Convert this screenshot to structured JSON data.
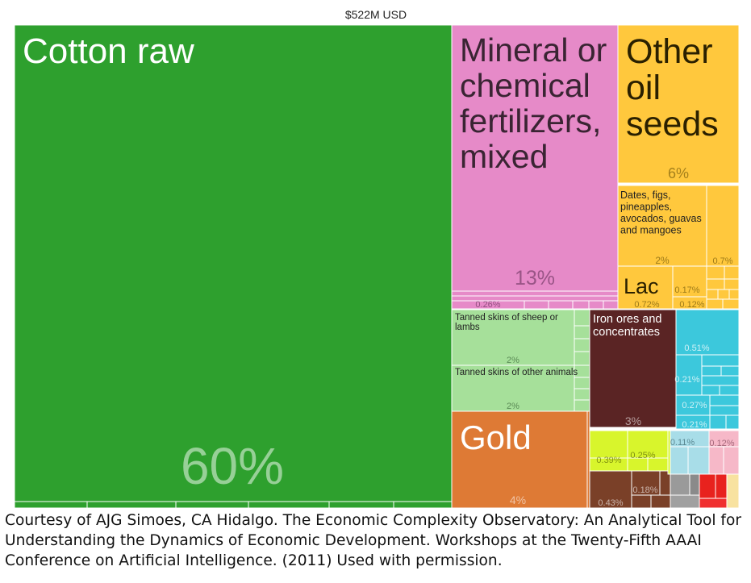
{
  "chart_data": {
    "type": "treemap",
    "title": "$522M USD",
    "items": [
      {
        "label": "Cotton raw",
        "pct_label": "60%",
        "color": "#2ea02e"
      },
      {
        "label": "Mineral or chemical fertilizers, mixed",
        "label_lines": [
          "Mineral or",
          "chemical",
          "fertilizers,",
          "mixed"
        ],
        "pct_label": "13%",
        "color": "#e68ac8"
      },
      {
        "label": "Other oil seeds",
        "label_lines": [
          "Other",
          "oil",
          "seeds"
        ],
        "pct_label": "6%",
        "color": "#ffc83d"
      },
      {
        "label": "Dates, figs, pineapples, avocados, guavas and mangoes",
        "label_lines": [
          "Dates, figs,",
          "pineapples,",
          "avocados, guavas",
          "and mangoes"
        ],
        "pct_label": "2%",
        "color": "#ffc83d"
      },
      {
        "label": "",
        "pct_label": "0.7%",
        "color": "#ffc83d"
      },
      {
        "label": "Lac",
        "pct_label": "0.72%",
        "color": "#ffc83d"
      },
      {
        "label": "",
        "pct_label": "0.17%",
        "color": "#ffc83d"
      },
      {
        "label": "",
        "pct_label": "0.12%",
        "color": "#ffc83d"
      },
      {
        "label": "",
        "pct_label": "0.26%",
        "color": "#e68ac8"
      },
      {
        "label": "Tanned skins of sheep or lambs",
        "label_lines": [
          "Tanned skins of sheep or",
          "lambs"
        ],
        "pct_label": "2%",
        "color": "#a6e09a"
      },
      {
        "label": "Tanned skins of other animals",
        "label_lines": [
          "Tanned skins of other animals"
        ],
        "pct_label": "2%",
        "color": "#a6e09a"
      },
      {
        "label": "Iron ores and concentrates",
        "label_lines": [
          "Iron ores and",
          "concentrates"
        ],
        "pct_label": "3%",
        "color": "#5a2424"
      },
      {
        "label": "",
        "pct_label": "0.51%",
        "color": "#3cc8dc"
      },
      {
        "label": "",
        "pct_label": "0.21%",
        "color": "#3cc8dc"
      },
      {
        "label": "",
        "pct_label": "0.27%",
        "color": "#3cc8dc"
      },
      {
        "label": "",
        "pct_label": "0.21%",
        "color": "#3cc8dc"
      },
      {
        "label": "Gold",
        "pct_label": "4%",
        "color": "#de7a35"
      },
      {
        "label": "",
        "pct_label": "0.39%",
        "color": "#d8f52c"
      },
      {
        "label": "",
        "pct_label": "0.25%",
        "color": "#d8f52c"
      },
      {
        "label": "",
        "pct_label": "0.11%",
        "color": "#a8dde8"
      },
      {
        "label": "",
        "pct_label": "0.12%",
        "color": "#f6b8c8"
      },
      {
        "label": "",
        "pct_label": "0.43%",
        "color": "#7a4028"
      },
      {
        "label": "",
        "pct_label": "0.18%",
        "color": "#7a4028"
      }
    ],
    "colors": {
      "vegetable": "#2ea02e",
      "chemical": "#e68ac8",
      "food": "#ffc83d",
      "hides": "#a6e09a",
      "minerals": "#5a2424",
      "machinery": "#3cc8dc",
      "metals": "#de7a35",
      "misc": "#d8f52c"
    }
  },
  "caption": "Courtesy of AJG Simoes, CA Hidalgo. The Economic Complexity Observatory: An Analytical Tool for Understanding the Dynamics of Economic Development. Workshops at the Twenty-Fifth AAAI Conference on Artificial Intelligence. (2011) Used with permission."
}
